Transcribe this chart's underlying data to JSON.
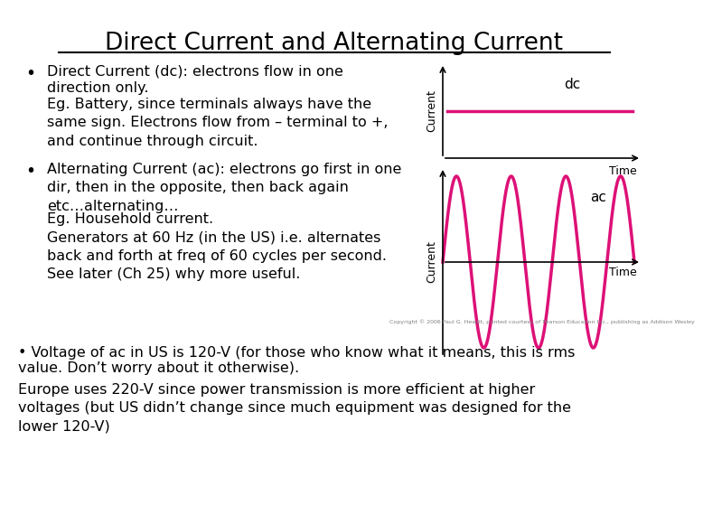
{
  "title": "Direct Current and Alternating Current",
  "title_fontsize": 19,
  "background_color": "#ffffff",
  "text_color": "#000000",
  "bullet1_line1": "Direct Current (dc): electrons flow in one",
  "bullet1_line2": "direction only.",
  "bullet1_body": "Eg. Battery, since terminals always have the\nsame sign. Electrons flow from – terminal to +,\nand continue through circuit.",
  "bullet2_header": "Alternating Current (ac): electrons go first in one\ndir, then in the opposite, then back again\netc…alternating…",
  "bullet2_body": "Eg. Household current.\nGenerators at 60 Hz (in the US) i.e. alternates\nback and forth at freq of 60 cycles per second.\nSee later (Ch 25) why more useful.",
  "bullet3_line1": "• Voltage of ac in US is 120-V (for those who know what it means, this is rms",
  "bullet3_line2": "value. Don’t worry about it otherwise).",
  "para4": "Europe uses 220-V since power transmission is more efficient at higher\nvoltages (but US didn’t change since much equipment was designed for the\nlower 120-V)",
  "copyright": "Copyright © 2006 Paul G. Hewitt, printed courtesy of Pearson Education Inc., publishing as Addison Wesley",
  "curve_color": "#dd1177",
  "font_family": "DejaVu Sans",
  "body_fontsize": 11.5
}
